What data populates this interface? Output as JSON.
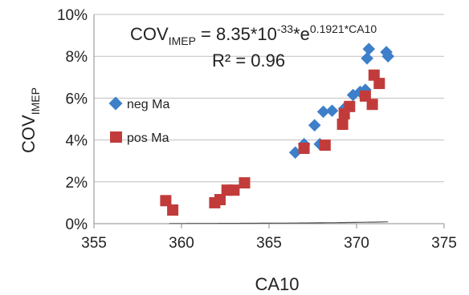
{
  "chart_data": {
    "type": "scatter",
    "xlabel": "CA10",
    "ylabel": {
      "main": "COV",
      "sub": "IMEP"
    },
    "xlim": [
      355,
      375
    ],
    "ylim": [
      0,
      10
    ],
    "x_ticks": [
      "355",
      "360",
      "365",
      "370",
      "375"
    ],
    "y_ticks": [
      "0%",
      "2%",
      "4%",
      "6%",
      "8%",
      "10%"
    ],
    "grid": "horizontal",
    "legend": "left",
    "annotation": {
      "lhs": "COV",
      "lhs_sub": "IMEP",
      "mid": " = 8.35*10",
      "exp1": "-33",
      "mid2": "*e",
      "exp2": "0.1921*CA10",
      "r2": "R² = 0.96"
    },
    "trendline": {
      "a": 8.35e-33,
      "b": 0.1921,
      "x_from": 359.3,
      "x_to": 371.8,
      "color": "#555555"
    },
    "series": [
      {
        "name": "neg Ma",
        "marker": "diamond",
        "color": "#3d7fc9",
        "points": [
          [
            366.5,
            3.4
          ],
          [
            367.0,
            3.8
          ],
          [
            367.6,
            4.7
          ],
          [
            367.9,
            3.8
          ],
          [
            368.1,
            5.35
          ],
          [
            368.6,
            5.4
          ],
          [
            369.3,
            5.5
          ],
          [
            369.8,
            6.15
          ],
          [
            370.2,
            6.3
          ],
          [
            370.5,
            6.4
          ],
          [
            370.6,
            7.9
          ],
          [
            370.7,
            8.35
          ],
          [
            371.7,
            8.2
          ],
          [
            371.8,
            8.0
          ]
        ]
      },
      {
        "name": "pos Ma",
        "marker": "square",
        "color": "#c23b3b",
        "points": [
          [
            359.1,
            1.1
          ],
          [
            359.5,
            0.65
          ],
          [
            361.9,
            1.0
          ],
          [
            362.2,
            1.15
          ],
          [
            362.6,
            1.6
          ],
          [
            363.0,
            1.6
          ],
          [
            363.6,
            1.95
          ],
          [
            367.0,
            3.6
          ],
          [
            368.2,
            3.75
          ],
          [
            369.2,
            4.75
          ],
          [
            369.3,
            5.25
          ],
          [
            369.6,
            5.6
          ],
          [
            370.5,
            6.1
          ],
          [
            370.9,
            5.7
          ],
          [
            371.0,
            7.1
          ],
          [
            371.3,
            6.7
          ]
        ]
      }
    ]
  }
}
